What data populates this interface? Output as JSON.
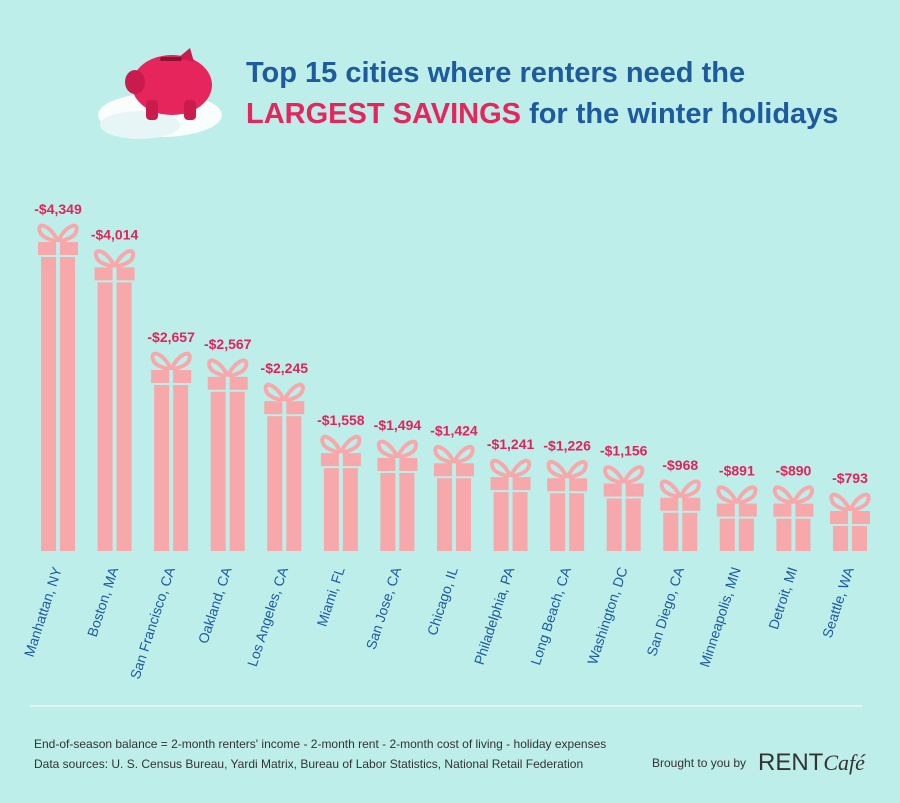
{
  "chart_data": {
    "type": "bar",
    "title_parts": [
      "Top 15 cities where renters need the",
      "LARGEST SAVINGS",
      "for the winter holidays"
    ],
    "categories": [
      "Manhattan, NY",
      "Boston, MA",
      "San Francisco, CA",
      "Oakland, CA",
      "Los Angeles, CA",
      "Miami, FL",
      "San Jose, CA",
      "Chicago, IL",
      "Philadelphia, PA",
      "Long Beach, CA",
      "Washington, DC",
      "San Diego, CA",
      "Minneapolis, MN",
      "Detroit, MI",
      "Seattle, WA"
    ],
    "values": [
      -4349,
      -4014,
      -2657,
      -2567,
      -2245,
      -1558,
      -1494,
      -1424,
      -1241,
      -1226,
      -1156,
      -968,
      -891,
      -890,
      -793
    ],
    "value_labels": [
      "-$4,349",
      "-$4,014",
      "-$2,657",
      "-$2,567",
      "-$2,245",
      "-$1,558",
      "-$1,494",
      "-$1,424",
      "-$1,241",
      "-$1,226",
      "-$1,156",
      "-$968",
      "-$891",
      "-$890",
      "-$793"
    ],
    "color": "#f7a8ab",
    "footnote": "End-of-season balance = 2-month renters' income - 2-month rent - 2-month cost of living - holiday expenses",
    "sources": "Data sources: U. S. Census Bureau, Yardi Matrix, Bureau of Labor Statistics, National Retail Federation",
    "credit": "Brought to you by",
    "brand": [
      "RENT",
      "Café"
    ]
  }
}
